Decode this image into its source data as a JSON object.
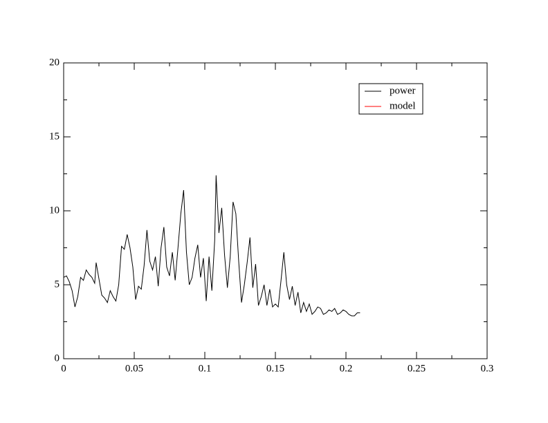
{
  "chart_data": {
    "type": "line",
    "xlim": [
      0,
      0.3
    ],
    "xticks": [
      0,
      0.05,
      0.1,
      0.15,
      0.2,
      0.25,
      0.3
    ],
    "xminorticks": [
      0.025,
      0.075,
      0.125,
      0.175,
      0.225,
      0.275
    ],
    "ylim": [
      0,
      20
    ],
    "yticks": [
      0,
      5,
      10,
      15,
      20
    ],
    "yminorticks": [
      2.5,
      7.5,
      12.5,
      17.5
    ],
    "legend": "upper right",
    "series": [
      {
        "name": "power",
        "color": "#000000",
        "x": [
          0,
          0.002,
          0.004,
          0.006,
          0.008,
          0.01,
          0.012,
          0.014,
          0.016,
          0.018,
          0.02,
          0.022,
          0.023,
          0.025,
          0.027,
          0.029,
          0.031,
          0.033,
          0.035,
          0.037,
          0.039,
          0.041,
          0.043,
          0.045,
          0.047,
          0.049,
          0.051,
          0.053,
          0.055,
          0.057,
          0.059,
          0.061,
          0.063,
          0.065,
          0.067,
          0.069,
          0.071,
          0.073,
          0.075,
          0.077,
          0.079,
          0.081,
          0.083,
          0.085,
          0.087,
          0.089,
          0.091,
          0.093,
          0.095,
          0.097,
          0.099,
          0.101,
          0.103,
          0.105,
          0.107,
          0.108,
          0.11,
          0.112,
          0.114,
          0.116,
          0.118,
          0.12,
          0.122,
          0.124,
          0.126,
          0.128,
          0.13,
          0.132,
          0.134,
          0.136,
          0.138,
          0.14,
          0.142,
          0.144,
          0.146,
          0.148,
          0.15,
          0.152,
          0.154,
          0.156,
          0.158,
          0.16,
          0.162,
          0.164,
          0.166,
          0.168,
          0.17,
          0.172,
          0.174,
          0.176,
          0.178,
          0.18,
          0.182,
          0.184,
          0.186,
          0.188,
          0.19,
          0.192,
          0.194,
          0.196,
          0.198,
          0.2,
          0.202,
          0.204,
          0.206,
          0.208,
          0.21
        ],
        "values": [
          5.5,
          5.6,
          5.2,
          4.6,
          3.5,
          4.2,
          5.5,
          5.3,
          6.0,
          5.7,
          5.5,
          5.1,
          6.5,
          5.4,
          4.3,
          4.1,
          3.8,
          4.6,
          4.2,
          3.9,
          5.0,
          7.6,
          7.4,
          8.4,
          7.5,
          6.2,
          4.0,
          4.9,
          4.7,
          6.3,
          8.7,
          6.6,
          6.0,
          6.9,
          4.9,
          7.5,
          8.9,
          6.2,
          5.6,
          7.2,
          5.3,
          7.5,
          9.8,
          11.4,
          7.2,
          5.0,
          5.5,
          6.8,
          7.7,
          5.5,
          6.8,
          3.9,
          6.9,
          4.6,
          8.0,
          12.4,
          8.5,
          10.2,
          7.0,
          4.8,
          6.9,
          10.6,
          9.8,
          6.6,
          3.8,
          5.0,
          6.5,
          8.2,
          4.8,
          6.4,
          3.6,
          4.2,
          5.0,
          3.6,
          4.7,
          3.5,
          3.7,
          3.5,
          5.3,
          7.2,
          5.0,
          4.0,
          4.9,
          3.6,
          4.5,
          3.1,
          3.8,
          3.2,
          3.7,
          3.0,
          3.2,
          3.5,
          3.4,
          3.0,
          3.1,
          3.3,
          3.2,
          3.4,
          3.0,
          3.1,
          3.3,
          3.2,
          3.0,
          2.9,
          2.9,
          3.1,
          3.1
        ]
      },
      {
        "name": "model",
        "color": "#ff0000",
        "x": [],
        "values": []
      }
    ]
  }
}
